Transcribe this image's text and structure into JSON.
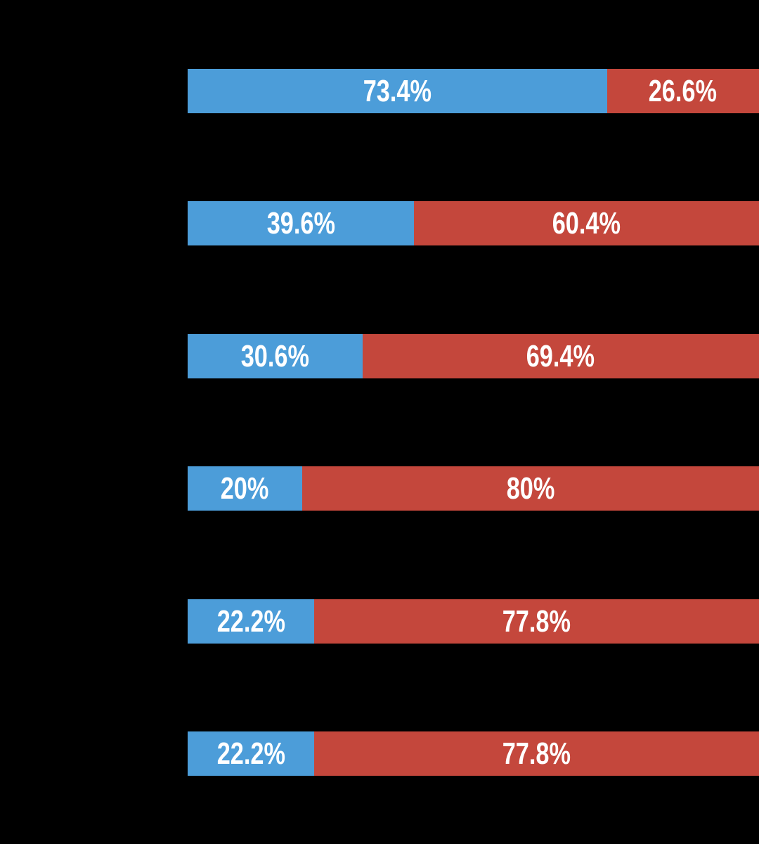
{
  "chart_data": {
    "type": "bar",
    "orientation": "horizontal",
    "stacked": true,
    "x_unit": "percent",
    "xlim": [
      0,
      100
    ],
    "rows": 6,
    "series": [
      {
        "name": "blue-share",
        "color": "#4C9DD9",
        "values": [
          73.4,
          39.6,
          30.6,
          20,
          22.2,
          22.2
        ],
        "data_labels": [
          "73.4%",
          "39.6%",
          "30.6%",
          "20%",
          "22.2%",
          "22.2%"
        ]
      },
      {
        "name": "red-share",
        "color": "#C4473C",
        "values": [
          26.6,
          60.4,
          69.4,
          80,
          77.8,
          77.8
        ],
        "data_labels": [
          "26.6%",
          "60.4%",
          "69.4%",
          "80%",
          "77.8%",
          "77.8%"
        ]
      }
    ],
    "data_label_color": "#FFFFFF",
    "background_color": "#000000",
    "grid": false,
    "legend_visible": false,
    "title_visible": false,
    "category_labels_visible": false
  }
}
